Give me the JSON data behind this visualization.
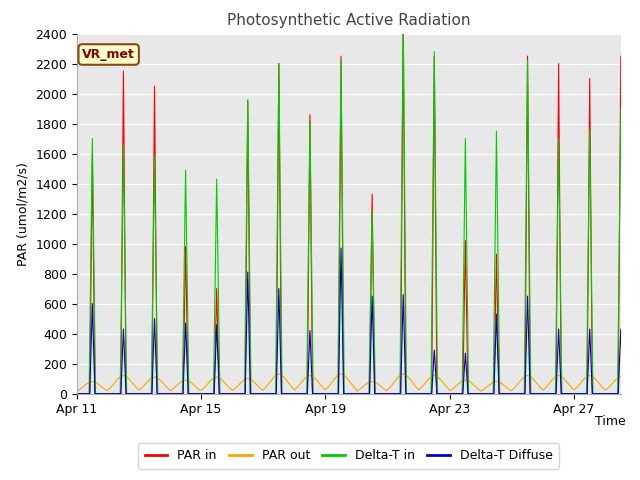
{
  "title": "Photosynthetic Active Radiation",
  "xlabel": "Time",
  "ylabel": "PAR (umol/m2/s)",
  "ylim": [
    0,
    2400
  ],
  "fig_facecolor": "#ffffff",
  "plot_bg_color": "#e8e8e8",
  "label_box_text": "VR_met",
  "label_box_facecolor": "#ffffcc",
  "label_box_edgecolor": "#8B4513",
  "legend_labels": [
    "PAR in",
    "PAR out",
    "Delta-T in",
    "Delta-T Diffuse"
  ],
  "line_colors": [
    "#ff0000",
    "#ffa500",
    "#00cc00",
    "#0000cc"
  ],
  "xtick_labels": [
    "Apr 11",
    "Apr 15",
    "Apr 19",
    "Apr 23",
    "Apr 27"
  ],
  "ytick_values": [
    0,
    200,
    400,
    600,
    800,
    1000,
    1200,
    1400,
    1600,
    1800,
    2000,
    2200,
    2400
  ],
  "par_in_peaks": [
    1600,
    2150,
    2050,
    980,
    700,
    1950,
    2200,
    1860,
    2250,
    1330,
    2500,
    2250,
    1020,
    930,
    2250,
    2200,
    2100,
    2250
  ],
  "par_out_peaks": [
    80,
    120,
    110,
    90,
    110,
    100,
    130,
    120,
    130,
    80,
    130,
    120,
    90,
    80,
    120,
    120,
    120,
    110
  ],
  "dt_in_peaks": [
    1700,
    1650,
    1580,
    1490,
    1430,
    1960,
    2200,
    1820,
    2220,
    1220,
    2490,
    2280,
    1700,
    1750,
    2220,
    1700,
    1760,
    1900
  ],
  "dt_diffuse_peaks": [
    600,
    430,
    500,
    470,
    460,
    810,
    700,
    420,
    970,
    650,
    660,
    290,
    270,
    530,
    650,
    430,
    430,
    430
  ]
}
